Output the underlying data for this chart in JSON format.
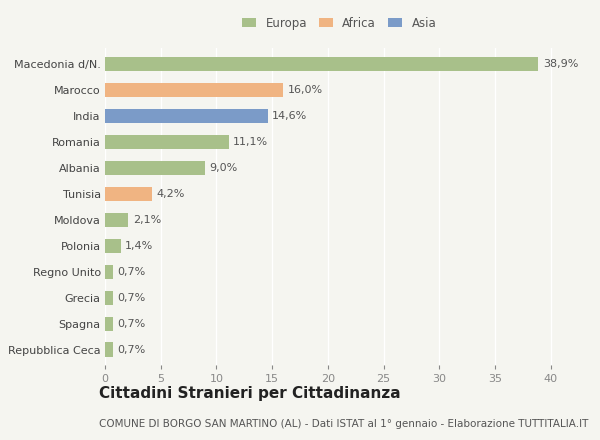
{
  "categories": [
    "Macedonia d/N.",
    "Marocco",
    "India",
    "Romania",
    "Albania",
    "Tunisia",
    "Moldova",
    "Polonia",
    "Regno Unito",
    "Grecia",
    "Spagna",
    "Repubblica Ceca"
  ],
  "values": [
    38.9,
    16.0,
    14.6,
    11.1,
    9.0,
    4.2,
    2.1,
    1.4,
    0.7,
    0.7,
    0.7,
    0.7
  ],
  "labels": [
    "38,9%",
    "16,0%",
    "14,6%",
    "11,1%",
    "9,0%",
    "4,2%",
    "2,1%",
    "1,4%",
    "0,7%",
    "0,7%",
    "0,7%",
    "0,7%"
  ],
  "continent": [
    "Europa",
    "Africa",
    "Asia",
    "Europa",
    "Europa",
    "Africa",
    "Europa",
    "Europa",
    "Europa",
    "Europa",
    "Europa",
    "Europa"
  ],
  "colors": {
    "Europa": "#a8c08a",
    "Africa": "#f0b482",
    "Asia": "#7b9bc8"
  },
  "legend_labels": [
    "Europa",
    "Africa",
    "Asia"
  ],
  "legend_colors": [
    "#a8c08a",
    "#f0b482",
    "#7b9bc8"
  ],
  "xlim": [
    0,
    42
  ],
  "xticks": [
    0,
    5,
    10,
    15,
    20,
    25,
    30,
    35,
    40
  ],
  "title": "Cittadini Stranieri per Cittadinanza",
  "subtitle": "COMUNE DI BORGO SAN MARTINO (AL) - Dati ISTAT al 1° gennaio - Elaborazione TUTTITALIA.IT",
  "bg_color": "#f5f5f0",
  "grid_color": "#ffffff",
  "bar_height": 0.55,
  "label_fontsize": 8,
  "tick_fontsize": 8,
  "title_fontsize": 11,
  "subtitle_fontsize": 7.5
}
